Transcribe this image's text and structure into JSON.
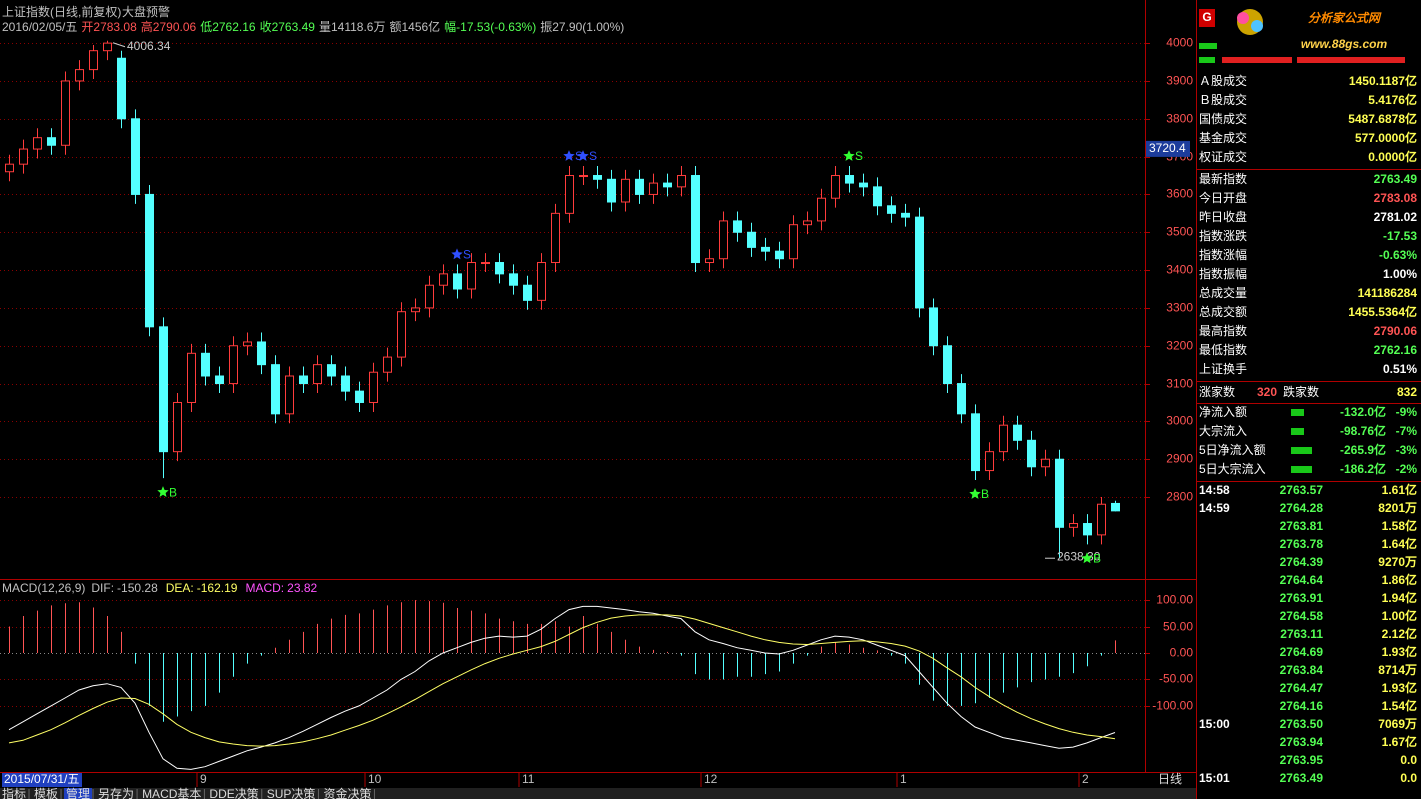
{
  "header": {
    "title": "上证指数(日线,前复权)",
    "subtitle": "大盘预警",
    "quote": [
      {
        "text": "2016/02/05/五",
        "color": "#c0c0c0"
      },
      {
        "text": "开2783.08",
        "color": "#ff5454"
      },
      {
        "text": "高2790.06",
        "color": "#ff5454"
      },
      {
        "text": "低2762.16",
        "color": "#54ff54"
      },
      {
        "text": "收2763.49",
        "color": "#54ff54"
      },
      {
        "text": "量14118.6万",
        "color": "#c0c0c0"
      },
      {
        "text": "额1456亿",
        "color": "#c0c0c0"
      },
      {
        "text": "幅-17.53(-0.63%)",
        "color": "#54ff54"
      },
      {
        "text": "振27.90(1.00%)",
        "color": "#c0c0c0"
      }
    ]
  },
  "chart_data": [
    {
      "type": "candlestick",
      "up_color": "#ff3c3c",
      "down_color": "#54ffff",
      "grid": true,
      "grid_color": "#8a0000",
      "categories": [
        null,
        null,
        null,
        null,
        null,
        null,
        null,
        null,
        null,
        null,
        null,
        null,
        null,
        null,
        "9",
        null,
        null,
        null,
        null,
        null,
        null,
        null,
        null,
        null,
        null,
        null,
        "10",
        null,
        null,
        null,
        null,
        null,
        null,
        null,
        null,
        null,
        null,
        "11",
        null,
        null,
        null,
        null,
        null,
        null,
        null,
        null,
        null,
        null,
        null,
        null,
        "12",
        null,
        null,
        null,
        null,
        null,
        null,
        null,
        null,
        null,
        null,
        null,
        null,
        null,
        "1",
        null,
        null,
        null,
        null,
        null,
        null,
        null,
        null,
        null,
        null,
        null,
        null,
        "2",
        null,
        null
      ],
      "open": [
        3660,
        3680,
        3720,
        3750,
        3730,
        3900,
        3930,
        3980,
        3960,
        3800,
        3600,
        3250,
        2920,
        3050,
        3180,
        3120,
        3100,
        3200,
        3210,
        3150,
        3020,
        3120,
        3100,
        3150,
        3120,
        3080,
        3050,
        3130,
        3170,
        3290,
        3300,
        3360,
        3390,
        3350,
        3420,
        3420,
        3390,
        3360,
        3320,
        3420,
        3550,
        3650,
        3650,
        3640,
        3580,
        3640,
        3600,
        3630,
        3620,
        3650,
        3420,
        3430,
        3530,
        3500,
        3460,
        3450,
        3430,
        3520,
        3530,
        3590,
        3650,
        3630,
        3620,
        3570,
        3550,
        3540,
        3300,
        3200,
        3100,
        3020,
        2870,
        2920,
        2990,
        2950,
        2880,
        2900,
        2720,
        2730,
        2700,
        2783.08
      ],
      "high": [
        3705,
        3745,
        3775,
        3775,
        3925,
        3955,
        3995,
        4006.34,
        3980,
        3825,
        3625,
        3275,
        3075,
        3205,
        3205,
        3145,
        3225,
        3235,
        3235,
        3175,
        3145,
        3145,
        3175,
        3175,
        3145,
        3105,
        3155,
        3195,
        3315,
        3325,
        3385,
        3415,
        3415,
        3445,
        3445,
        3445,
        3415,
        3385,
        3445,
        3575,
        3675,
        3675,
        3675,
        3665,
        3665,
        3665,
        3655,
        3655,
        3675,
        3675,
        3455,
        3555,
        3555,
        3525,
        3485,
        3475,
        3545,
        3555,
        3615,
        3675,
        3675,
        3655,
        3645,
        3595,
        3575,
        3565,
        3325,
        3225,
        3125,
        3045,
        2945,
        3015,
        3015,
        2975,
        2925,
        2925,
        2755,
        2755,
        2800,
        2790.06
      ],
      "low": [
        3635,
        3655,
        3695,
        3705,
        3705,
        3875,
        3905,
        3955,
        3775,
        3575,
        3225,
        2850,
        2895,
        3025,
        3095,
        3075,
        3075,
        3175,
        3125,
        2995,
        2995,
        3075,
        3075,
        3095,
        3055,
        3025,
        3025,
        3105,
        3145,
        3265,
        3275,
        3335,
        3325,
        3325,
        3395,
        3365,
        3335,
        3295,
        3295,
        3395,
        3525,
        3625,
        3615,
        3555,
        3555,
        3575,
        3575,
        3595,
        3595,
        3395,
        3395,
        3405,
        3475,
        3435,
        3425,
        3405,
        3405,
        3495,
        3505,
        3565,
        3605,
        3595,
        3545,
        3525,
        3515,
        3275,
        3175,
        3075,
        2995,
        2845,
        2845,
        2895,
        2925,
        2855,
        2855,
        2638.3,
        2695,
        2675,
        2675,
        2762.16
      ],
      "close": [
        3680,
        3720,
        3750,
        3730,
        3900,
        3930,
        3980,
        4000,
        3800,
        3600,
        3250,
        2920,
        3050,
        3180,
        3120,
        3100,
        3200,
        3210,
        3150,
        3020,
        3120,
        3100,
        3150,
        3120,
        3080,
        3050,
        3130,
        3170,
        3290,
        3300,
        3360,
        3390,
        3350,
        3420,
        3420,
        3390,
        3360,
        3320,
        3420,
        3550,
        3650,
        3650,
        3640,
        3580,
        3640,
        3600,
        3630,
        3620,
        3650,
        3420,
        3430,
        3530,
        3500,
        3460,
        3450,
        3430,
        3520,
        3530,
        3590,
        3650,
        3630,
        3620,
        3570,
        3550,
        3540,
        3300,
        3200,
        3100,
        3020,
        2870,
        2920,
        2990,
        2950,
        2880,
        2900,
        2720,
        2730,
        2700,
        2781.02,
        2763.49
      ],
      "ylim": [
        2586,
        4114
      ],
      "yticks": [
        2800,
        2900,
        3000,
        3100,
        3200,
        3300,
        3400,
        3500,
        3600,
        3700,
        3800,
        3900,
        4000
      ],
      "tick_color": "#ff5454",
      "cursor_price": 3720.4,
      "date_label": "2015/07/31/五",
      "extremes": {
        "high": "4006.34",
        "low": "2638.30"
      },
      "signals": [
        {
          "candle": 11,
          "label": "B",
          "color": "#33ff33",
          "position": "below"
        },
        {
          "candle": 32,
          "label": "S",
          "color": "#3050ff",
          "position": "above"
        },
        {
          "candle": 40,
          "label": "S",
          "color": "#3050ff",
          "position": "above"
        },
        {
          "candle": 41,
          "label": "S",
          "color": "#3050ff",
          "position": "above"
        },
        {
          "candle": 60,
          "label": "S",
          "color": "#33ff33",
          "position": "above"
        },
        {
          "candle": 69,
          "label": "B",
          "color": "#33ff33",
          "position": "below"
        },
        {
          "candle": 77,
          "label": "B",
          "color": "#33ff33",
          "position": "below"
        }
      ]
    },
    {
      "type": "macd",
      "title": "MACD(12,26,9)",
      "ylim": [
        -225,
        138
      ],
      "yticks": [
        {
          "value": 100,
          "label": "100.00"
        },
        {
          "value": 50,
          "label": "50.00"
        },
        {
          "value": 0,
          "label": "0.00"
        },
        {
          "value": -50,
          "label": "-50.00"
        },
        {
          "value": -100,
          "label": "-100.00"
        }
      ],
      "up_color": "#ff5454",
      "down_color": "#54ffff",
      "series": [
        {
          "name": "DIF:",
          "color": "#ffffff",
          "values": [
            -145,
            -130,
            -115,
            -100,
            -85,
            -70,
            -62,
            -58,
            -65,
            -95,
            -150,
            -200,
            -218,
            -220,
            -215,
            -205,
            -195,
            -185,
            -178,
            -170,
            -160,
            -148,
            -135,
            -122,
            -110,
            -100,
            -85,
            -70,
            -50,
            -35,
            -15,
            0,
            10,
            20,
            28,
            32,
            30,
            32,
            45,
            65,
            82,
            88,
            88,
            85,
            82,
            78,
            75,
            70,
            65,
            40,
            25,
            18,
            10,
            5,
            0,
            -2,
            5,
            15,
            25,
            32,
            30,
            25,
            15,
            5,
            -5,
            -35,
            -65,
            -95,
            -120,
            -140,
            -150,
            -160,
            -165,
            -170,
            -175,
            -180,
            -178,
            -170,
            -160,
            -150.28
          ]
        },
        {
          "name": "DEA:",
          "color": "#ffff66",
          "values": [
            -170,
            -165,
            -155,
            -145,
            -132,
            -118,
            -105,
            -93,
            -85,
            -86,
            -97,
            -115,
            -135,
            -150,
            -160,
            -168,
            -172,
            -175,
            -176,
            -175,
            -172,
            -168,
            -162,
            -155,
            -146,
            -137,
            -127,
            -115,
            -102,
            -88,
            -73,
            -58,
            -45,
            -32,
            -20,
            -10,
            -2,
            5,
            12,
            22,
            35,
            48,
            58,
            66,
            70,
            72,
            72,
            72,
            70,
            64,
            56,
            48,
            40,
            32,
            25,
            20,
            17,
            16,
            18,
            20,
            22,
            23,
            21,
            18,
            13,
            4,
            -10,
            -28,
            -45,
            -65,
            -82,
            -98,
            -112,
            -124,
            -134,
            -143,
            -150,
            -155,
            -158,
            -162.19
          ]
        },
        {
          "name": "MACD:",
          "color": "#ff54ff",
          "values": [
            50,
            70,
            80,
            90,
            94,
            96,
            86,
            70,
            40,
            -20,
            -100,
            -130,
            -120,
            -110,
            -100,
            -75,
            -45,
            -20,
            -5,
            10,
            25,
            40,
            55,
            65,
            72,
            75,
            82,
            90,
            96,
            100,
            98,
            95,
            85,
            80,
            75,
            65,
            60,
            55,
            55,
            60,
            50,
            70,
            55,
            40,
            25,
            12,
            6,
            2,
            -5,
            -40,
            -50,
            -50,
            -45,
            -45,
            -40,
            -35,
            -20,
            -5,
            12,
            20,
            16,
            10,
            5,
            -5,
            -20,
            -60,
            -90,
            -100,
            -100,
            -95,
            -85,
            -75,
            -65,
            -55,
            -50,
            -45,
            -38,
            -25,
            -5,
            23.82
          ]
        }
      ]
    }
  ],
  "sidebar": {
    "logo": {
      "badge": "G",
      "name": "分析家公式网",
      "url": "www.88gs.com"
    },
    "market": [
      {
        "label": "Ａ股成交",
        "value": "1450.1187亿"
      },
      {
        "label": "Ｂ股成交",
        "value": "5.4176亿"
      },
      {
        "label": "国债成交",
        "value": "5487.6878亿"
      },
      {
        "label": "基金成交",
        "value": "577.0000亿"
      },
      {
        "label": "权证成交",
        "value": "0.0000亿"
      }
    ],
    "index": [
      {
        "label": "最新指数",
        "value": "2763.49",
        "color": "#54ff54"
      },
      {
        "label": "今日开盘",
        "value": "2783.08",
        "color": "#ff5454"
      },
      {
        "label": "昨日收盘",
        "value": "2781.02",
        "color": "#ffffff"
      },
      {
        "label": "指数涨跌",
        "value": "-17.53",
        "color": "#54ff54"
      },
      {
        "label": "指数涨幅",
        "value": "-0.63%",
        "color": "#54ff54"
      },
      {
        "label": "指数振幅",
        "value": "1.00%",
        "color": "#ffffff"
      },
      {
        "label": "总成交量",
        "value": "141186284",
        "color": "#ffff54"
      },
      {
        "label": "总成交额",
        "value": "1455.5364亿",
        "color": "#ffff54"
      },
      {
        "label": "最高指数",
        "value": "2790.06",
        "color": "#ff5454"
      },
      {
        "label": "最低指数",
        "value": "2762.16",
        "color": "#54ff54"
      },
      {
        "label": "上证换手",
        "value": "0.51%",
        "color": "#ffffff"
      }
    ],
    "breadth": {
      "up_label": "涨家数",
      "up": 320,
      "down_label": "跌家数",
      "down": 832
    },
    "flows": [
      {
        "label": "净流入额",
        "value": "-132.0亿",
        "pct": "-9%"
      },
      {
        "label": "大宗流入",
        "value": "-98.76亿",
        "pct": "-7%"
      },
      {
        "label": "5日净流入额",
        "value": "-265.9亿",
        "pct": "-3%"
      },
      {
        "label": "5日大宗流入",
        "value": "-186.2亿",
        "pct": "-2%"
      }
    ],
    "ticks": [
      [
        "14:58",
        "2763.57",
        "1.61亿"
      ],
      [
        "14:59",
        "2764.28",
        "8201万"
      ],
      [
        null,
        "2763.81",
        "1.58亿"
      ],
      [
        null,
        "2763.78",
        "1.64亿"
      ],
      [
        null,
        "2764.39",
        "9270万"
      ],
      [
        null,
        "2764.64",
        "1.86亿"
      ],
      [
        null,
        "2763.91",
        "1.94亿"
      ],
      [
        null,
        "2764.58",
        "1.00亿"
      ],
      [
        null,
        "2763.11",
        "2.12亿"
      ],
      [
        null,
        "2764.69",
        "1.93亿"
      ],
      [
        null,
        "2763.84",
        "8714万"
      ],
      [
        null,
        "2764.47",
        "1.93亿"
      ],
      [
        null,
        "2764.16",
        "1.54亿"
      ],
      [
        "15:00",
        "2763.50",
        "7069万"
      ],
      [
        null,
        "2763.94",
        "1.67亿"
      ],
      [
        null,
        "2763.95",
        "0.0"
      ],
      [
        "15:01",
        "2763.49",
        "0.0"
      ]
    ]
  },
  "tabs": [
    "指标",
    "模板",
    "管理",
    "另存为",
    "MACD基本",
    "DDE决策",
    "SUP决策",
    "资金决策"
  ],
  "period": "日线"
}
